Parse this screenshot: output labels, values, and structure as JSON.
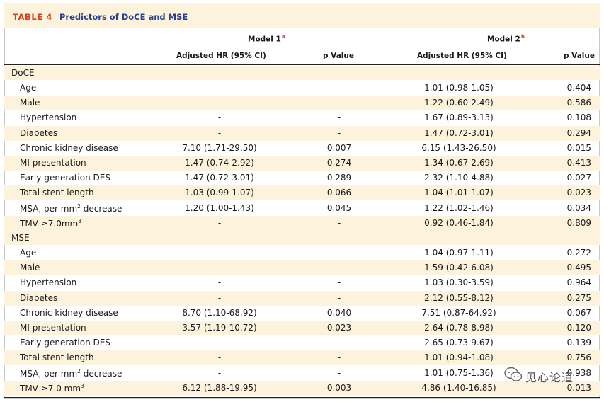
{
  "table": {
    "label": "TABLE 4",
    "title": "Predictors of DoCE and MSE",
    "model1": {
      "name": "Model 1",
      "footnote": "a",
      "hr_header": "Adjusted HR (95% CI)",
      "p_header": "p Value"
    },
    "model2": {
      "name": "Model 2",
      "footnote": "b",
      "hr_header": "Adjusted HR (95% CI)",
      "p_header": "p Value"
    },
    "groups": [
      {
        "name": "DoCE",
        "rows": [
          {
            "label": "Age",
            "m1_hr": "-",
            "m1_p": "-",
            "m2_hr": "1.01 (0.98-1.05)",
            "m2_p": "0.404"
          },
          {
            "label": "Male",
            "m1_hr": "-",
            "m1_p": "-",
            "m2_hr": "1.22 (0.60-2.49)",
            "m2_p": "0.586"
          },
          {
            "label": "Hypertension",
            "m1_hr": "-",
            "m1_p": "-",
            "m2_hr": "1.67 (0.89-3.13)",
            "m2_p": "0.108"
          },
          {
            "label": "Diabetes",
            "m1_hr": "-",
            "m1_p": "-",
            "m2_hr": "1.47 (0.72-3.01)",
            "m2_p": "0.294"
          },
          {
            "label": "Chronic kidney disease",
            "m1_hr": "7.10 (1.71-29.50)",
            "m1_p": "0.007",
            "m2_hr": "6.15 (1.43-26.50)",
            "m2_p": "0.015"
          },
          {
            "label": "MI presentation",
            "m1_hr": "1.47 (0.74-2.92)",
            "m1_p": "0.274",
            "m2_hr": "1.34 (0.67-2.69)",
            "m2_p": "0.413"
          },
          {
            "label": "Early-generation DES",
            "m1_hr": "1.47 (0.72-3.01)",
            "m1_p": "0.289",
            "m2_hr": "2.32 (1.10-4.88)",
            "m2_p": "0.027"
          },
          {
            "label": "Total stent length",
            "m1_hr": "1.03 (0.99-1.07)",
            "m1_p": "0.066",
            "m2_hr": "1.04 (1.01-1.07)",
            "m2_p": "0.023"
          },
          {
            "label": "MSA, per mm",
            "sup": "2",
            "label_suffix": " decrease",
            "m1_hr": "1.20 (1.00-1.43)",
            "m1_p": "0.045",
            "m2_hr": "1.22 (1.02-1.46)",
            "m2_p": "0.034"
          },
          {
            "label": "TMV ≥7.0mm",
            "sup": "3",
            "label_suffix": "",
            "m1_hr": "-",
            "m1_p": "-",
            "m2_hr": "0.92 (0.46-1.84)",
            "m2_p": "0.809"
          }
        ]
      },
      {
        "name": "MSE",
        "rows": [
          {
            "label": "Age",
            "m1_hr": "-",
            "m1_p": "-",
            "m2_hr": "1.04 (0.97-1.11)",
            "m2_p": "0.272"
          },
          {
            "label": "Male",
            "m1_hr": "-",
            "m1_p": "-",
            "m2_hr": "1.59 (0.42-6.08)",
            "m2_p": "0.495"
          },
          {
            "label": "Hypertension",
            "m1_hr": "-",
            "m1_p": "-",
            "m2_hr": "1.03 (0.30-3.59)",
            "m2_p": "0.964"
          },
          {
            "label": "Diabetes",
            "m1_hr": "-",
            "m1_p": "-",
            "m2_hr": "2.12 (0.55-8.12)",
            "m2_p": "0.275"
          },
          {
            "label": "Chronic kidney disease",
            "m1_hr": "8.70 (1.10-68.92)",
            "m1_p": "0.040",
            "m2_hr": "7.51 (0.87-64.92)",
            "m2_p": "0.067"
          },
          {
            "label": "MI presentation",
            "m1_hr": "3.57 (1.19-10.72)",
            "m1_p": "0.023",
            "m2_hr": "2.64 (0.78-8.98)",
            "m2_p": "0.120"
          },
          {
            "label": "Early-generation DES",
            "m1_hr": "-",
            "m1_p": "-",
            "m2_hr": "2.65 (0.73-9.67)",
            "m2_p": "0.139"
          },
          {
            "label": "Total stent length",
            "m1_hr": "-",
            "m1_p": "-",
            "m2_hr": "1.01 (0.94-1.08)",
            "m2_p": "0.756"
          },
          {
            "label": "MSA, per mm",
            "sup": "2",
            "label_suffix": " decrease",
            "m1_hr": "-",
            "m1_p": "-",
            "m2_hr": "1.01 (0.75-1.36)",
            "m2_p": "0.938"
          },
          {
            "label": "TMV ≥7.0 mm",
            "sup": "3",
            "label_suffix": "",
            "m1_hr": "6.12 (1.88-19.95)",
            "m1_p": "0.003",
            "m2_hr": "4.86 (1.40-16.85)",
            "m2_p": "0.013"
          }
        ]
      }
    ]
  },
  "watermark": {
    "text": "见心论道",
    "icon": "wechat-icon"
  }
}
